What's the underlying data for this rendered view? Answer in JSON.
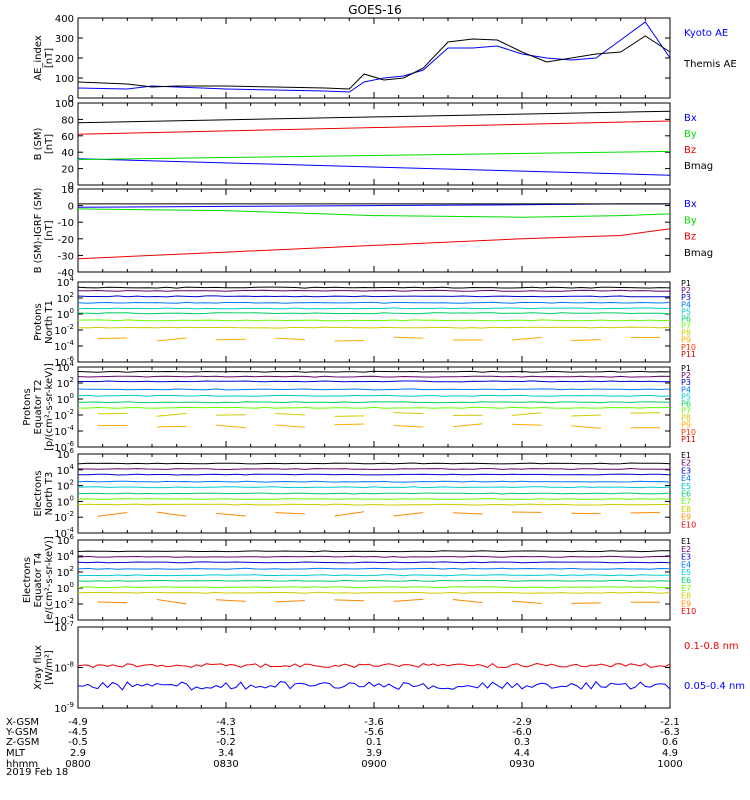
{
  "title": "GOES-16",
  "date": "2019 Feb 18",
  "colors": {
    "black": "#000000",
    "blue": "#0000ff",
    "green": "#00dd00",
    "red": "#ee0000",
    "p": [
      "#000000",
      "#660066",
      "#0000cc",
      "#0077ff",
      "#00cccc",
      "#00cc66",
      "#66ff00",
      "#cccc00",
      "#ffaa00",
      "#ff3300",
      "#cc0000"
    ],
    "e": [
      "#000000",
      "#660066",
      "#0000cc",
      "#0077ff",
      "#00cccc",
      "#00cc66",
      "#66ff00",
      "#cccc00",
      "#ff8800",
      "#ee0000"
    ]
  },
  "footer": {
    "row_labels": [
      "X-GSM",
      "Y-GSM",
      "Z-GSM",
      "MLT",
      "hhmm"
    ],
    "columns": [
      {
        "time": "0800",
        "x": "-4.9",
        "y": "-4.5",
        "z": "-0.5",
        "mlt": "2.9",
        "hhmm": "0800"
      },
      {
        "time": "0830",
        "x": "-4.3",
        "y": "-5.1",
        "z": "-0.2",
        "mlt": "3.4",
        "hhmm": "0830"
      },
      {
        "time": "0900",
        "x": "-3.6",
        "y": "-5.6",
        "z": "0.1",
        "mlt": "3.9",
        "hhmm": "0900"
      },
      {
        "time": "0930",
        "x": "-2.9",
        "y": "-6.0",
        "z": "0.3",
        "mlt": "4.4",
        "hhmm": "0930"
      },
      {
        "time": "1000",
        "x": "-2.1",
        "y": "-6.3",
        "z": "0.6",
        "mlt": "4.9",
        "hhmm": "1000"
      }
    ]
  },
  "chart_data": [
    {
      "id": "ae",
      "type": "line",
      "ylabel": [
        "AE_index",
        "[nT]"
      ],
      "ylim": [
        0,
        400
      ],
      "ticks": [
        "0",
        "100",
        "200",
        "300",
        "400"
      ],
      "x_minutes": [
        0,
        10,
        15,
        20,
        30,
        40,
        50,
        55,
        58,
        62,
        66,
        70,
        75,
        80,
        85,
        90,
        95,
        100,
        105,
        110,
        115,
        120
      ],
      "series": [
        {
          "name": "Kyoto AE",
          "color": "blue",
          "values": [
            50,
            45,
            60,
            55,
            45,
            40,
            35,
            30,
            80,
            100,
            110,
            140,
            250,
            250,
            260,
            220,
            200,
            190,
            200,
            290,
            380,
            200
          ]
        },
        {
          "name": "Themis AE",
          "color": "black",
          "values": [
            80,
            70,
            55,
            60,
            60,
            55,
            50,
            45,
            120,
            90,
            100,
            150,
            280,
            295,
            290,
            230,
            180,
            200,
            220,
            230,
            310,
            230
          ]
        }
      ]
    },
    {
      "id": "bsm",
      "type": "line",
      "ylabel": [
        "B (SM)",
        "[nT]"
      ],
      "ylim": [
        0,
        100
      ],
      "ticks": [
        "0",
        "20",
        "40",
        "60",
        "80",
        "100"
      ],
      "x_minutes": [
        0,
        120
      ],
      "series": [
        {
          "name": "Bx",
          "color": "blue",
          "values": [
            32,
            12
          ]
        },
        {
          "name": "By",
          "color": "green",
          "values": [
            31,
            41
          ]
        },
        {
          "name": "Bz",
          "color": "red",
          "values": [
            62,
            78
          ]
        },
        {
          "name": "Bmag",
          "color": "black",
          "values": [
            76,
            90
          ]
        }
      ]
    },
    {
      "id": "bigrf",
      "type": "line",
      "ylabel": [
        "B (SM)-IGRF (SM)",
        "[nT]"
      ],
      "ylim": [
        -40,
        10
      ],
      "ticks": [
        "-40",
        "-30",
        "-20",
        "-10",
        "0",
        "10"
      ],
      "x_minutes": [
        0,
        30,
        60,
        90,
        110,
        120
      ],
      "series": [
        {
          "name": "Bx",
          "color": "blue",
          "values": [
            -1,
            -0.5,
            0,
            0.5,
            1,
            1
          ]
        },
        {
          "name": "By",
          "color": "green",
          "values": [
            -2,
            -3,
            -6,
            -7,
            -6,
            -5
          ]
        },
        {
          "name": "Bz",
          "color": "red",
          "values": [
            -32,
            -28,
            -24,
            -20,
            -18,
            -14
          ]
        },
        {
          "name": "Bmag",
          "color": "black",
          "values": [
            1,
            1,
            1,
            1,
            1,
            1
          ]
        }
      ]
    },
    {
      "id": "pn",
      "type": "line",
      "ylabel": [
        "Protons",
        "North T1"
      ],
      "log": true,
      "ylim_exp": [
        -6,
        4
      ],
      "ticks_exp": [
        -6,
        -4,
        -2,
        0,
        2,
        4
      ],
      "legend": [
        "P1",
        "P2",
        "P3",
        "P4",
        "P5",
        "P6",
        "P7",
        "P8",
        "P9",
        "P10",
        "P11"
      ],
      "levels_exp": [
        3.3,
        2.9,
        2.2,
        1.4,
        0.7,
        0.1,
        -0.8,
        -1.7,
        -3.2
      ],
      "gap_channels": [
        8
      ]
    },
    {
      "id": "pe",
      "type": "line",
      "ylabel": [
        "Protons",
        "Equator T2",
        "[p/(cm²-s-sr-keV)]"
      ],
      "log": true,
      "ylim_exp": [
        -6,
        4
      ],
      "ticks_exp": [
        -6,
        -4,
        -2,
        0,
        2,
        4
      ],
      "legend": [
        "P1",
        "P2",
        "P3",
        "P4",
        "P5",
        "P6",
        "P7",
        "P8",
        "P9",
        "P10",
        "P11"
      ],
      "levels_exp": [
        3.4,
        2.8,
        2.2,
        1.2,
        0.4,
        -0.4,
        -1.1,
        -2.0,
        -3.4
      ],
      "gap_channels": [
        7,
        8
      ]
    },
    {
      "id": "en",
      "type": "line",
      "ylabel": [
        "Electrons",
        "North T3"
      ],
      "log": true,
      "ylim_exp": [
        -4,
        6
      ],
      "ticks_exp": [
        -4,
        -2,
        0,
        2,
        4,
        6
      ],
      "legend": [
        "E1",
        "E2",
        "E3",
        "E4",
        "E5",
        "E6",
        "E7",
        "E8",
        "E9",
        "E10"
      ],
      "levels_exp": [
        4.8,
        4.1,
        3.4,
        2.5,
        1.8,
        1.0,
        0.3,
        -0.4,
        -1.6
      ],
      "gap_channels": [
        8
      ]
    },
    {
      "id": "ee",
      "type": "line",
      "ylabel": [
        "Electrons",
        "Equator T4",
        "[e/(cm²-s-sr-keV)]"
      ],
      "log": true,
      "ylim_exp": [
        -4,
        6
      ],
      "ticks_exp": [
        -4,
        -2,
        0,
        2,
        4,
        6
      ],
      "legend": [
        "E1",
        "E2",
        "E3",
        "E4",
        "E5",
        "E6",
        "E7",
        "E8",
        "E9",
        "E10"
      ],
      "levels_exp": [
        4.6,
        3.9,
        3.2,
        2.4,
        1.6,
        0.9,
        0.1,
        -0.6,
        -1.7
      ],
      "gap_channels": [
        8
      ]
    },
    {
      "id": "xray",
      "type": "line",
      "ylabel": [
        "Xray flux",
        "[W/m²]"
      ],
      "log": true,
      "ylim_exp": [
        -9,
        -7
      ],
      "ticks_exp": [
        -9,
        -8,
        -7
      ],
      "series": [
        {
          "name": "0.1-0.8 nm",
          "color": "red",
          "level_exp": -7.95
        },
        {
          "name": "0.05-0.4 nm",
          "color": "blue",
          "level_exp": -8.45
        }
      ]
    }
  ]
}
